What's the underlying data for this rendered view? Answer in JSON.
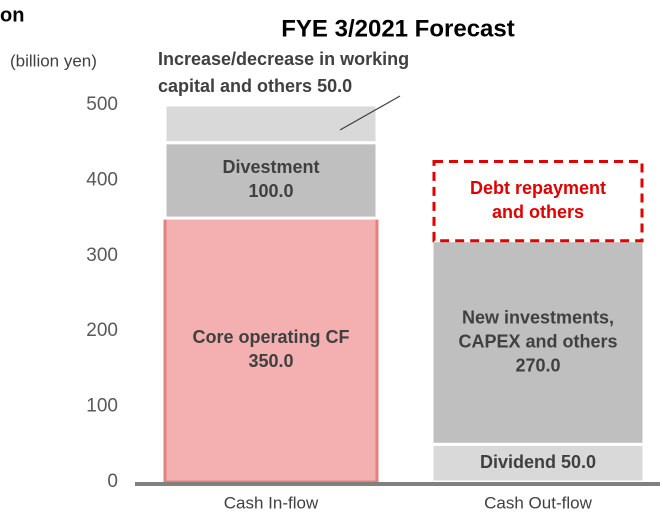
{
  "chart_data": {
    "type": "stacked_bar",
    "corner_text": "on",
    "title": "FYE 3/2021 Forecast",
    "y_label": "(billion yen)",
    "categories": [
      "Cash In-flow",
      "Cash Out-flow"
    ],
    "ylim": [
      0,
      500
    ],
    "yticks": [
      0,
      100,
      200,
      300,
      400,
      500
    ],
    "series": [
      {
        "label": [
          "Core operating CF"
        ],
        "values": [
          350,
          null
        ],
        "value_labels": [
          "350.0",
          null
        ],
        "color": "#f4b0b0",
        "border": "#e58080",
        "label_color": "#404040",
        "label_style": "inside"
      },
      {
        "label": [
          "Divestment"
        ],
        "values": [
          100,
          null
        ],
        "value_labels": [
          "100.0",
          null
        ],
        "color": "#bfbfbf",
        "border": "#ffffff",
        "label_color": "#404040",
        "label_style": "inside"
      },
      {
        "label": [
          "Increase/decrease in working",
          "capital and others"
        ],
        "values": [
          50,
          null
        ],
        "value_labels": [
          "50.0",
          null
        ],
        "color": "#d9d9d9",
        "border": "#ffffff",
        "label_color": "#404040",
        "label_style": "callout"
      },
      {
        "label": [
          "Dividend"
        ],
        "values": [
          null,
          50
        ],
        "value_labels": [
          null,
          "50.0"
        ],
        "color": "#d9d9d9",
        "border": "#ffffff",
        "label_color": "#404040",
        "label_style": "inline"
      },
      {
        "label": [
          "New investments,",
          "CAPEX and others"
        ],
        "values": [
          null,
          270
        ],
        "value_labels": [
          null,
          "270.0"
        ],
        "color": "#bfbfbf",
        "border": "#ffffff",
        "label_color": "#404040",
        "label_style": "inside"
      },
      {
        "label": [
          "Debt repayment",
          "and others"
        ],
        "values": [
          null,
          105
        ],
        "color": "none",
        "border": "#e00000",
        "dashed": true,
        "label_color": "#e00000",
        "label_style": "inside"
      }
    ]
  }
}
